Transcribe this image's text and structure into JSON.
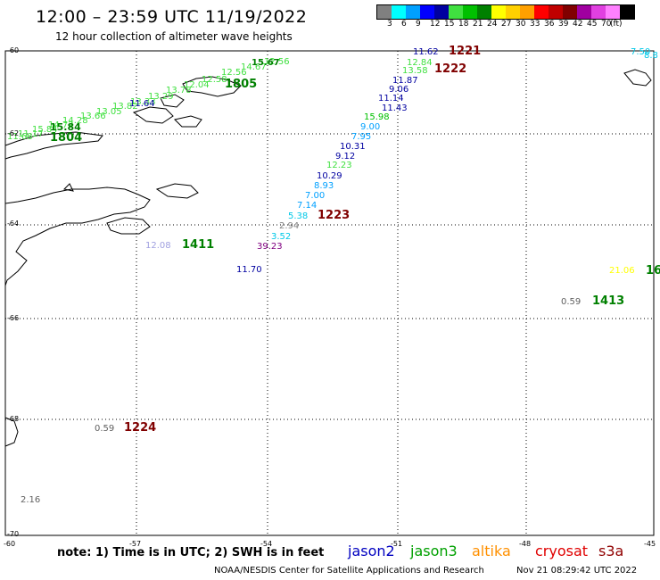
{
  "header": {
    "title": "12:00 – 23:59 UTC 11/19/2022",
    "subtitle": "12 hour collection of altimeter wave heights"
  },
  "legend_scale": {
    "colors": [
      "#808080",
      "#00ffff",
      "#00a0ff",
      "#0000ff",
      "#0000a0",
      "#40e040",
      "#00c000",
      "#008000",
      "#ffff00",
      "#ffd000",
      "#ffa000",
      "#ff0000",
      "#c00000",
      "#800000",
      "#a000a0",
      "#e040e0",
      "#ff80ff",
      "#000000"
    ],
    "labels": [
      "3",
      "6",
      "9",
      "12",
      "15",
      "18",
      "21",
      "24",
      "27",
      "30",
      "33",
      "36",
      "39",
      "42",
      "45",
      "70",
      "(ft)"
    ]
  },
  "axes": {
    "lat_labels": [
      "-60",
      "-62",
      "-64",
      "-66",
      "-68",
      "-70"
    ],
    "lon_labels": [
      "-60",
      "-57",
      "-54",
      "-51",
      "-48",
      "-45"
    ]
  },
  "green_track": [
    "11.68",
    "11.17",
    "15.84",
    "14.72",
    "14.28",
    "13.66",
    "13.05",
    "13.82",
    "13.33",
    "13.29",
    "13.78",
    "12.04",
    "12.58",
    "12.56",
    "14.67",
    "12.56"
  ],
  "green_track_bold": [
    "15.67",
    "15.84"
  ],
  "observations": [
    {
      "value": "11.64",
      "color": "#0000a0"
    },
    {
      "value": "11.62",
      "color": "#0000a0"
    },
    {
      "value": "12.84",
      "color": "#40e040"
    },
    {
      "value": "13.58",
      "color": "#40e040"
    },
    {
      "value": "11.87",
      "color": "#0000a0"
    },
    {
      "value": "9.06",
      "color": "#0000a0"
    },
    {
      "value": "11.14",
      "color": "#0000a0"
    },
    {
      "value": "11.43",
      "color": "#0000a0"
    },
    {
      "value": "15.98",
      "color": "#00c000"
    },
    {
      "value": "9.00",
      "color": "#00a0ff"
    },
    {
      "value": "7.95",
      "color": "#00a0ff"
    },
    {
      "value": "10.31",
      "color": "#0000a0"
    },
    {
      "value": "9.12",
      "color": "#0000a0"
    },
    {
      "value": "12.23",
      "color": "#40e040"
    },
    {
      "value": "10.29",
      "color": "#0000a0"
    },
    {
      "value": "8.93",
      "color": "#00a0ff"
    },
    {
      "value": "7.00",
      "color": "#00a0ff"
    },
    {
      "value": "7.14",
      "color": "#00a0ff"
    },
    {
      "value": "5.38",
      "color": "#00c8e8"
    },
    {
      "value": "2.94",
      "color": "#808080"
    },
    {
      "value": "3.52",
      "color": "#00c8e8"
    },
    {
      "value": "39.23",
      "color": "#800080"
    },
    {
      "value": "12.08",
      "color": "#a0a0e0"
    },
    {
      "value": "11.70",
      "color": "#0000a0"
    },
    {
      "value": "7.50",
      "color": "#00c8e8"
    },
    {
      "value": "8.8",
      "color": "#00c8e8"
    },
    {
      "value": "21.06",
      "color": "#ffff00"
    },
    {
      "value": "0.59",
      "color": "#606060"
    },
    {
      "value": "0.59",
      "color": "#606060"
    },
    {
      "value": "2.16",
      "color": "#606060"
    }
  ],
  "time_labels": [
    {
      "text": "1221",
      "color": "#800000"
    },
    {
      "text": "1222",
      "color": "#800000"
    },
    {
      "text": "1223",
      "color": "#800000"
    },
    {
      "text": "1805",
      "color": "#008000"
    },
    {
      "text": "1804",
      "color": "#008000"
    },
    {
      "text": "1411",
      "color": "#008000"
    },
    {
      "text": "1413",
      "color": "#008000"
    },
    {
      "text": "16",
      "color": "#008000"
    },
    {
      "text": "1224",
      "color": "#800000"
    }
  ],
  "footer": {
    "note": "note:  1) Time is in UTC;  2) SWH is in feet",
    "satellites": [
      {
        "name": "jason2",
        "color": "#0000c0"
      },
      {
        "name": "jason3",
        "color": "#00a000"
      },
      {
        "name": "altika",
        "color": "#ff9000"
      },
      {
        "name": "cryosat",
        "color": "#e00000"
      },
      {
        "name": "s3a",
        "color": "#900000"
      }
    ],
    "credit": "NOAA/NESDIS Center for Satellite Applications and Research",
    "timestamp": "Nov 21 08:29:42 UTC 2022"
  }
}
